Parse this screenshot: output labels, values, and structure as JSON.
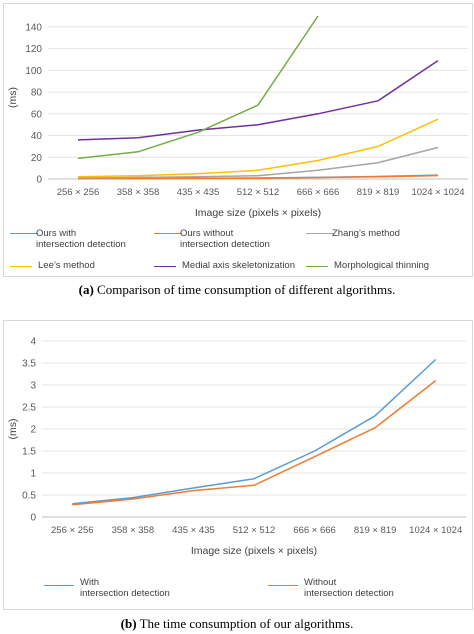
{
  "chart_data": [
    {
      "type": "line",
      "ylabel": "(ms)",
      "xlabel": "Image size (pixels × pixels)",
      "categories": [
        "256 × 256",
        "358 × 358",
        "435 × 435",
        "512 × 512",
        "666 × 666",
        "819 × 819",
        "1024 × 1024"
      ],
      "ylim": [
        0,
        150
      ],
      "yticks": [
        0,
        20,
        40,
        60,
        80,
        100,
        120,
        140
      ],
      "grid": true,
      "legend": "bottom",
      "series": [
        {
          "name": "Ours with\nintersection detection",
          "color": "#5b9bd5",
          "values": [
            0.3,
            0.4,
            0.6,
            0.9,
            1.5,
            2.3,
            3.6
          ]
        },
        {
          "name": "Ours without\nintersection detection",
          "color": "#ed7d31",
          "values": [
            0.3,
            0.4,
            0.6,
            0.7,
            1.4,
            2.0,
            3.1
          ]
        },
        {
          "name": "Zhang’s method",
          "color": "#a5a5a5",
          "values": [
            1,
            1.5,
            2,
            3,
            8,
            15,
            29
          ]
        },
        {
          "name": "Lee’s method",
          "color": "#ffc000",
          "values": [
            2,
            3,
            5,
            8,
            17,
            30,
            55
          ]
        },
        {
          "name": "Medial axis skeletonization",
          "color": "#7030a0",
          "values": [
            36,
            38,
            45,
            50,
            60,
            72,
            109
          ]
        },
        {
          "name": "Morphological thinning",
          "color": "#70ad47",
          "values": [
            19,
            25,
            43,
            68,
            150,
            null,
            null
          ]
        }
      ],
      "caption_label": "(a)",
      "caption_text": " Comparison of time consumption of different algorithms."
    },
    {
      "type": "line",
      "ylabel": "(ms)",
      "xlabel": "Image size (pixels × pixels)",
      "categories": [
        "256 × 256",
        "358 × 358",
        "435 × 435",
        "512 × 512",
        "666 × 666",
        "819 × 819",
        "1024 × 1024"
      ],
      "ylim": [
        0,
        4
      ],
      "yticks": [
        0,
        0.5,
        1,
        1.5,
        2,
        2.5,
        3,
        3.5,
        4
      ],
      "grid": true,
      "legend": "bottom",
      "series": [
        {
          "name": "With\nintersection detection",
          "color": "#5b9bd5",
          "values": [
            0.3,
            0.44,
            0.66,
            0.87,
            1.5,
            2.3,
            3.58
          ]
        },
        {
          "name": "Without\nintersection detection",
          "color": "#ed7d31",
          "values": [
            0.28,
            0.41,
            0.6,
            0.72,
            1.37,
            2.03,
            3.1
          ]
        }
      ],
      "caption_label": "(b)",
      "caption_text": " The time consumption of our algorithms."
    }
  ]
}
